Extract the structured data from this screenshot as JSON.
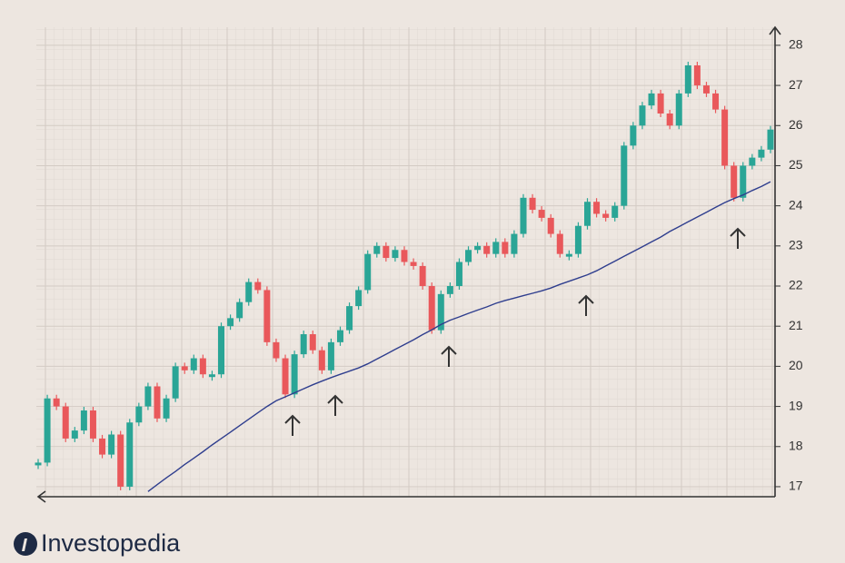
{
  "brand": "Investopedia",
  "chart_data": {
    "type": "candlestick",
    "ylim": [
      16.75,
      28.45
    ],
    "yticks": [
      17,
      18,
      19,
      20,
      21,
      22,
      23,
      24,
      25,
      26,
      27,
      28
    ],
    "grid": true,
    "series": [
      {
        "color": "#2aa596",
        "down_color": "#e9585b",
        "values": [
          17.6,
          19.2,
          19.0,
          18.2,
          18.4,
          18.9,
          18.2,
          17.8,
          18.3,
          17.0,
          18.6,
          19.0,
          19.5,
          18.7,
          19.2,
          20.0,
          19.9,
          20.2,
          19.8,
          19.8,
          21.0,
          21.2,
          21.6,
          22.1,
          21.9,
          20.6,
          20.2,
          19.3,
          20.3,
          20.8,
          20.4,
          19.9,
          20.6,
          20.9,
          21.5,
          21.9,
          22.8,
          23.0,
          22.7,
          22.9,
          22.6,
          22.5,
          22.0,
          20.9,
          21.8,
          22.0,
          22.6,
          22.9,
          23.0,
          22.8,
          23.1,
          22.8,
          23.3,
          24.2,
          23.9,
          23.7,
          23.3,
          22.8,
          22.8,
          23.5,
          24.1,
          23.8,
          23.7,
          24.0,
          25.5,
          26.0,
          26.5,
          26.8,
          26.3,
          26.0,
          26.8,
          27.5,
          27.0,
          26.8,
          26.4,
          25.0,
          24.2,
          25.0,
          25.2,
          25.4,
          25.9
        ]
      },
      {
        "color": "#2f3e8e",
        "values": [
          null,
          null,
          null,
          null,
          null,
          null,
          null,
          null,
          null,
          null,
          null,
          null,
          16.88,
          17.05,
          17.22,
          17.38,
          17.55,
          17.71,
          17.87,
          18.04,
          18.2,
          18.36,
          18.52,
          18.68,
          18.84,
          19.0,
          19.14,
          19.24,
          19.34,
          19.44,
          19.54,
          19.63,
          19.72,
          19.8,
          19.88,
          19.96,
          20.06,
          20.18,
          20.3,
          20.42,
          20.54,
          20.66,
          20.79,
          20.91,
          21.04,
          21.15,
          21.23,
          21.32,
          21.4,
          21.48,
          21.57,
          21.64,
          21.7,
          21.76,
          21.82,
          21.88,
          21.95,
          22.04,
          22.12,
          22.2,
          22.28,
          22.38,
          22.5,
          22.62,
          22.74,
          22.86,
          22.98,
          23.1,
          23.22,
          23.36,
          23.48,
          23.6,
          23.72,
          23.84,
          23.96,
          24.08,
          24.18,
          24.27,
          24.38,
          24.48,
          24.6
        ]
      }
    ]
  }
}
